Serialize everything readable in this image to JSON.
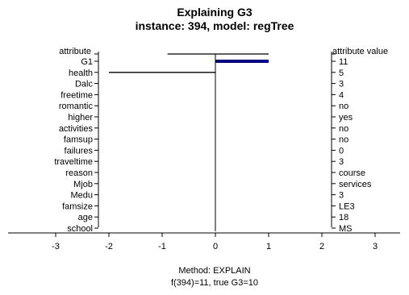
{
  "chart_data": {
    "type": "bar",
    "title": "Explaining G3",
    "subtitle": "instance: 394, model: regTree",
    "left_header": "attribute",
    "right_header": "attribute value",
    "categories": [
      "G1",
      "health",
      "Dalc",
      "freetime",
      "romantic",
      "higher",
      "activities",
      "famsup",
      "failures",
      "traveltime",
      "reason",
      "Mjob",
      "Medu",
      "famsize",
      "age",
      "school"
    ],
    "attribute_values": [
      "11",
      "5",
      "3",
      "4",
      "no",
      "yes",
      "no",
      "no",
      "0",
      "3",
      "course",
      "services",
      "3",
      "LE3",
      "18",
      "MS"
    ],
    "values": [
      1.0,
      -2.0,
      0,
      0,
      0,
      0,
      0,
      0,
      0,
      0,
      0,
      0,
      0,
      0,
      0,
      0
    ],
    "header_interval": [
      -0.9,
      1.0
    ],
    "xlim": [
      -3,
      3
    ],
    "xticks": [
      "-3",
      "-2",
      "-1",
      "0",
      "1",
      "2",
      "3"
    ],
    "bar_color": "#00008b",
    "footer_line1": "Method: EXPLAIN",
    "footer_line2": "f(394)=11, true G3=10"
  }
}
